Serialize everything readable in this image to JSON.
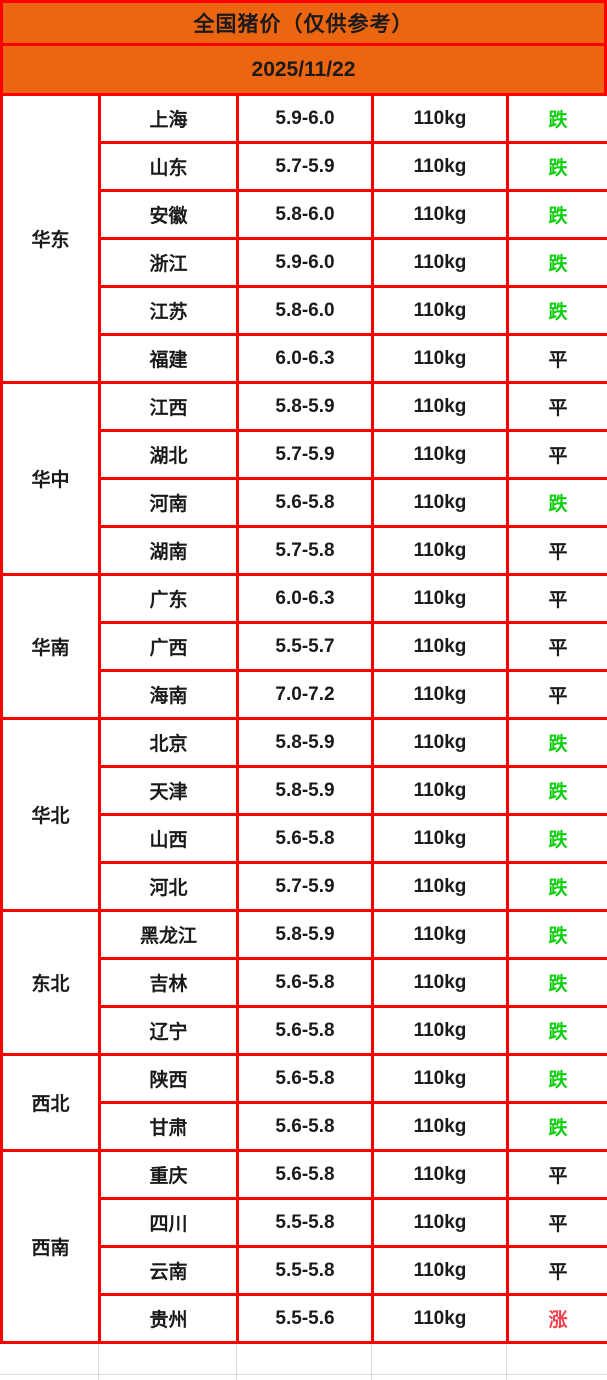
{
  "header": {
    "title": "全国猪价（仅供参考）",
    "date": "2025/11/22"
  },
  "colors": {
    "header_bg": "#EC6511",
    "border_red": "#FF0000",
    "grid_gray": "#D9D9D9",
    "text": "#1A1A1A",
    "trend": {
      "跌": "#0FCE0F",
      "平": "#1A1A1A",
      "涨": "#F2414E"
    }
  },
  "table": {
    "regions": [
      {
        "name": "华东",
        "rows": [
          {
            "province": "上海",
            "price": "5.9-6.0",
            "weight": "110kg",
            "trend": "跌"
          },
          {
            "province": "山东",
            "price": "5.7-5.9",
            "weight": "110kg",
            "trend": "跌"
          },
          {
            "province": "安徽",
            "price": "5.8-6.0",
            "weight": "110kg",
            "trend": "跌"
          },
          {
            "province": "浙江",
            "price": "5.9-6.0",
            "weight": "110kg",
            "trend": "跌"
          },
          {
            "province": "江苏",
            "price": "5.8-6.0",
            "weight": "110kg",
            "trend": "跌"
          },
          {
            "province": "福建",
            "price": "6.0-6.3",
            "weight": "110kg",
            "trend": "平"
          }
        ]
      },
      {
        "name": "华中",
        "rows": [
          {
            "province": "江西",
            "price": "5.8-5.9",
            "weight": "110kg",
            "trend": "平"
          },
          {
            "province": "湖北",
            "price": "5.7-5.9",
            "weight": "110kg",
            "trend": "平"
          },
          {
            "province": "河南",
            "price": "5.6-5.8",
            "weight": "110kg",
            "trend": "跌"
          },
          {
            "province": "湖南",
            "price": "5.7-5.8",
            "weight": "110kg",
            "trend": "平"
          }
        ]
      },
      {
        "name": "华南",
        "rows": [
          {
            "province": "广东",
            "price": "6.0-6.3",
            "weight": "110kg",
            "trend": "平"
          },
          {
            "province": "广西",
            "price": "5.5-5.7",
            "weight": "110kg",
            "trend": "平"
          },
          {
            "province": "海南",
            "price": "7.0-7.2",
            "weight": "110kg",
            "trend": "平"
          }
        ]
      },
      {
        "name": "华北",
        "rows": [
          {
            "province": "北京",
            "price": "5.8-5.9",
            "weight": "110kg",
            "trend": "跌"
          },
          {
            "province": "天津",
            "price": "5.8-5.9",
            "weight": "110kg",
            "trend": "跌"
          },
          {
            "province": "山西",
            "price": "5.6-5.8",
            "weight": "110kg",
            "trend": "跌"
          },
          {
            "province": "河北",
            "price": "5.7-5.9",
            "weight": "110kg",
            "trend": "跌"
          }
        ]
      },
      {
        "name": "东北",
        "rows": [
          {
            "province": "黑龙江",
            "price": "5.8-5.9",
            "weight": "110kg",
            "trend": "跌"
          },
          {
            "province": "吉林",
            "price": "5.6-5.8",
            "weight": "110kg",
            "trend": "跌"
          },
          {
            "province": "辽宁",
            "price": "5.6-5.8",
            "weight": "110kg",
            "trend": "跌"
          }
        ]
      },
      {
        "name": "西北",
        "rows": [
          {
            "province": "陕西",
            "price": "5.6-5.8",
            "weight": "110kg",
            "trend": "跌"
          },
          {
            "province": "甘肃",
            "price": "5.6-5.8",
            "weight": "110kg",
            "trend": "跌"
          }
        ]
      },
      {
        "name": "西南",
        "rows": [
          {
            "province": "重庆",
            "price": "5.6-5.8",
            "weight": "110kg",
            "trend": "平"
          },
          {
            "province": "四川",
            "price": "5.5-5.8",
            "weight": "110kg",
            "trend": "平"
          },
          {
            "province": "云南",
            "price": "5.5-5.8",
            "weight": "110kg",
            "trend": "平"
          },
          {
            "province": "贵州",
            "price": "5.5-5.6",
            "weight": "110kg",
            "trend": "涨"
          }
        ]
      }
    ]
  }
}
